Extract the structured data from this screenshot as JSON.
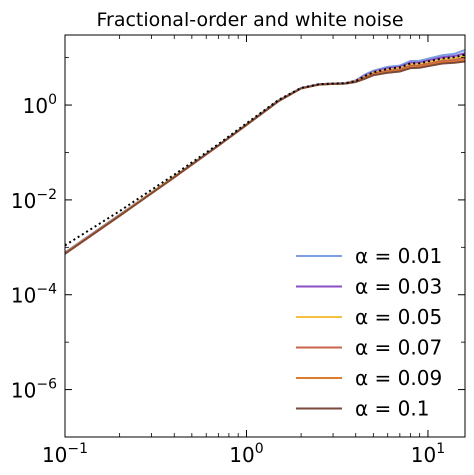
{
  "chart_data": {
    "type": "line",
    "title": "Fractional-order and white noise",
    "xscale": "log",
    "yscale": "log",
    "xlim": [
      0.1,
      16
    ],
    "ylim": [
      1e-07,
      30
    ],
    "grid": false,
    "legend_position": "lower-right",
    "xticks": [
      {
        "value": 0.1,
        "base": "10",
        "exp": "−1"
      },
      {
        "value": 1,
        "base": "10",
        "exp": "0"
      },
      {
        "value": 10,
        "base": "10",
        "exp": "1"
      }
    ],
    "yticks": [
      {
        "value": 1e-06,
        "base": "10",
        "exp": "−6"
      },
      {
        "value": 0.0001,
        "base": "10",
        "exp": "−4"
      },
      {
        "value": 0.01,
        "base": "10",
        "exp": "−2"
      },
      {
        "value": 1,
        "base": "10",
        "exp": "0"
      }
    ],
    "series": [
      {
        "name": "α = 0.01",
        "color": "#7b9ee6",
        "style": "solid",
        "x": [
          0.1,
          0.2,
          0.4,
          0.7,
          1.0,
          1.5,
          2.0,
          2.5,
          3.0,
          3.5,
          4.0,
          4.5,
          5.0,
          6.0,
          7.0,
          8.0,
          9.0,
          10.0,
          12.0,
          14.0,
          16.0
        ],
        "y": [
          0.00078,
          0.0049,
          0.031,
          0.14,
          0.39,
          1.25,
          2.3,
          2.75,
          2.85,
          2.9,
          3.3,
          4.4,
          5.3,
          6.4,
          6.8,
          8.5,
          8.6,
          9.5,
          11.2,
          12.0,
          14.5
        ]
      },
      {
        "name": "α = 0.03",
        "color": "#8a4fc4",
        "style": "solid",
        "x": [
          0.1,
          0.2,
          0.4,
          0.7,
          1.0,
          1.5,
          2.0,
          2.5,
          3.0,
          3.5,
          4.0,
          4.5,
          5.0,
          6.0,
          7.0,
          8.0,
          9.0,
          10.0,
          12.0,
          14.0,
          16.0
        ],
        "y": [
          0.00077,
          0.0048,
          0.031,
          0.14,
          0.39,
          1.24,
          2.28,
          2.73,
          2.83,
          2.88,
          3.25,
          4.2,
          5.0,
          6.0,
          6.4,
          7.8,
          7.9,
          8.7,
          10.2,
          10.8,
          12.5
        ]
      },
      {
        "name": "α = 0.05",
        "color": "#f5c142",
        "style": "solid",
        "x": [
          0.1,
          0.2,
          0.4,
          0.7,
          1.0,
          1.5,
          2.0,
          2.5,
          3.0,
          3.5,
          4.0,
          4.5,
          5.0,
          6.0,
          7.0,
          8.0,
          9.0,
          10.0,
          12.0,
          14.0,
          16.0
        ],
        "y": [
          0.00076,
          0.0048,
          0.031,
          0.14,
          0.39,
          1.23,
          2.27,
          2.72,
          2.82,
          2.86,
          3.2,
          4.0,
          4.8,
          5.6,
          6.0,
          7.2,
          7.3,
          8.0,
          9.2,
          9.8,
          11.0
        ]
      },
      {
        "name": "α = 0.07",
        "color": "#c8644a",
        "style": "solid",
        "x": [
          0.1,
          0.2,
          0.4,
          0.7,
          1.0,
          1.5,
          2.0,
          2.5,
          3.0,
          3.5,
          4.0,
          4.5,
          5.0,
          6.0,
          7.0,
          8.0,
          9.0,
          10.0,
          12.0,
          14.0,
          16.0
        ],
        "y": [
          0.00075,
          0.0047,
          0.03,
          0.14,
          0.38,
          1.22,
          2.26,
          2.71,
          2.81,
          2.85,
          3.15,
          3.85,
          4.6,
          5.3,
          5.6,
          6.7,
          6.8,
          7.4,
          8.5,
          8.9,
          9.8
        ]
      },
      {
        "name": "α = 0.09",
        "color": "#e07b2e",
        "style": "solid",
        "x": [
          0.1,
          0.2,
          0.4,
          0.7,
          1.0,
          1.5,
          2.0,
          2.5,
          3.0,
          3.5,
          4.0,
          4.5,
          5.0,
          6.0,
          7.0,
          8.0,
          9.0,
          10.0,
          12.0,
          14.0,
          16.0
        ],
        "y": [
          0.00074,
          0.0047,
          0.03,
          0.14,
          0.38,
          1.21,
          2.25,
          2.7,
          2.8,
          2.84,
          3.1,
          3.7,
          4.4,
          5.0,
          5.3,
          6.3,
          6.4,
          6.9,
          7.9,
          8.2,
          8.8
        ]
      },
      {
        "name": "α = 0.1",
        "color": "#7a4a3a",
        "style": "solid",
        "x": [
          0.1,
          0.2,
          0.4,
          0.7,
          1.0,
          1.5,
          2.0,
          2.5,
          3.0,
          3.5,
          4.0,
          4.5,
          5.0,
          6.0,
          7.0,
          8.0,
          9.0,
          10.0,
          12.0,
          14.0,
          16.0
        ],
        "y": [
          0.00073,
          0.0046,
          0.03,
          0.14,
          0.38,
          1.2,
          2.24,
          2.69,
          2.79,
          2.83,
          3.05,
          3.6,
          4.25,
          4.8,
          5.1,
          6.0,
          6.1,
          6.6,
          7.5,
          7.8,
          8.3
        ]
      },
      {
        "color": "#000000",
        "style": "dotted",
        "x": [
          0.1,
          0.2,
          0.4,
          0.7,
          1.0,
          1.5,
          2.0,
          2.5,
          3.0,
          3.5,
          4.0,
          4.5,
          5.0,
          6.0,
          7.0,
          8.0,
          9.0,
          10.0,
          12.0,
          14.0,
          16.0
        ],
        "y": [
          0.0011,
          0.0058,
          0.034,
          0.15,
          0.41,
          1.28,
          2.3,
          2.74,
          2.84,
          2.88,
          3.2,
          4.1,
          4.9,
          5.8,
          6.2,
          7.5,
          7.6,
          8.3,
          9.6,
          10.2,
          11.5
        ]
      }
    ]
  }
}
